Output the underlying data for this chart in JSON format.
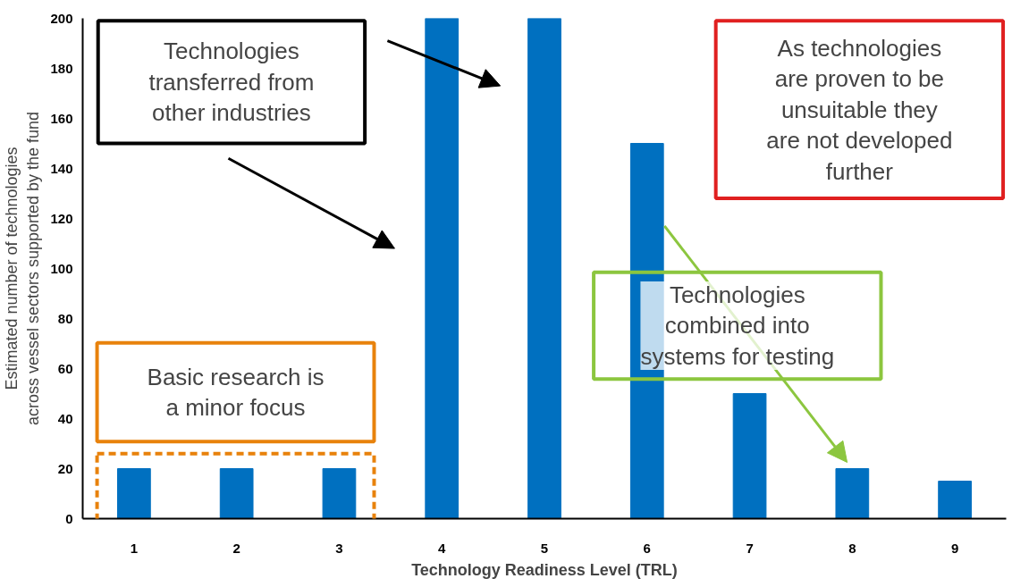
{
  "chart_data": {
    "type": "bar",
    "xlabel": "Technology Readiness Level (TRL)",
    "ylabel": "Estimated number of technologies\nacross vessel sectors supported by the fund",
    "categories": [
      "1",
      "2",
      "3",
      "4",
      "5",
      "6",
      "7",
      "8",
      "9"
    ],
    "values": [
      20,
      20,
      20,
      200,
      200,
      150,
      50,
      20,
      15
    ],
    "color": "#0070c0",
    "ylim": [
      0,
      200
    ],
    "yticks": [
      0,
      20,
      40,
      60,
      80,
      100,
      120,
      140,
      160,
      180,
      200
    ],
    "grid": false,
    "annotations": [
      "Technologies\ntransferred from\nother industries",
      "As technologies\nare proven to be\nunsuitable they\nare not developed\nfurther",
      "Technologies\ncombined into\nsystems for testing",
      "Basic research is\na minor focus"
    ]
  }
}
